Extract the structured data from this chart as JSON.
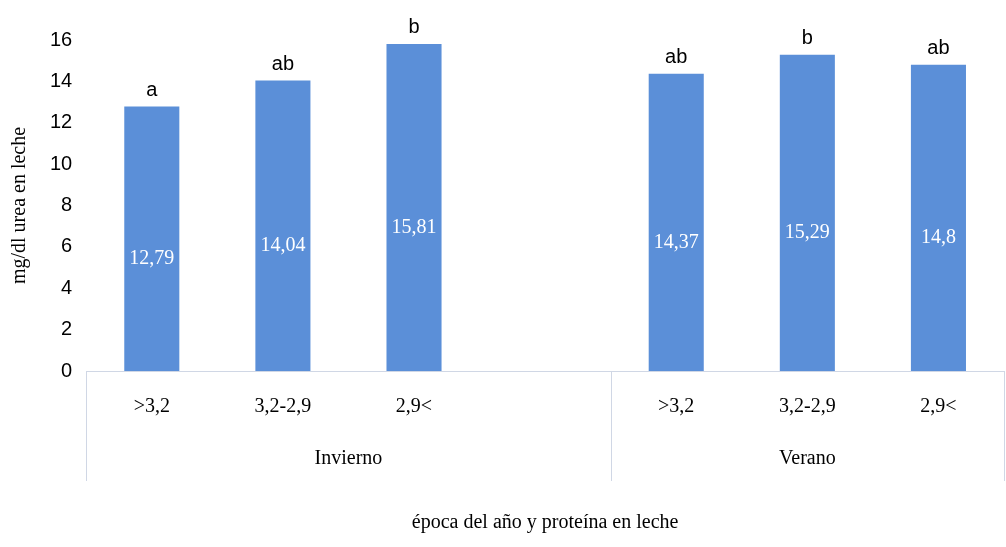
{
  "chart_data": {
    "type": "bar",
    "xlabel": "época del año y proteína en leche",
    "ylabel": "mg/dl urea en leche",
    "categories": [
      ">3,2",
      "3,2-2,9",
      "2,9<",
      null,
      ">3,2",
      "3,2-2,9",
      "2,9<"
    ],
    "values": [
      12.79,
      14.04,
      15.81,
      null,
      14.37,
      15.29,
      14.8
    ],
    "value_labels": [
      "12,79",
      "14,04",
      "15,81",
      null,
      "14,37",
      "15,29",
      "14,8"
    ],
    "color": "#5b8fd8",
    "ylim": [
      0,
      16
    ],
    "yticks": [
      0,
      2,
      4,
      6,
      8,
      10,
      12,
      14,
      16
    ],
    "grid": false,
    "legend": false,
    "annotations": [
      {
        "text": "a",
        "y": 12.79
      },
      {
        "text": "ab",
        "y": 14.04
      },
      {
        "text": "b",
        "y": 15.81
      },
      {
        "text": "ab",
        "y": 14.37
      },
      {
        "text": "b",
        "y": 15.29
      },
      {
        "text": "ab",
        "y": 14.8
      },
      "Invierno",
      "Verano"
    ]
  }
}
